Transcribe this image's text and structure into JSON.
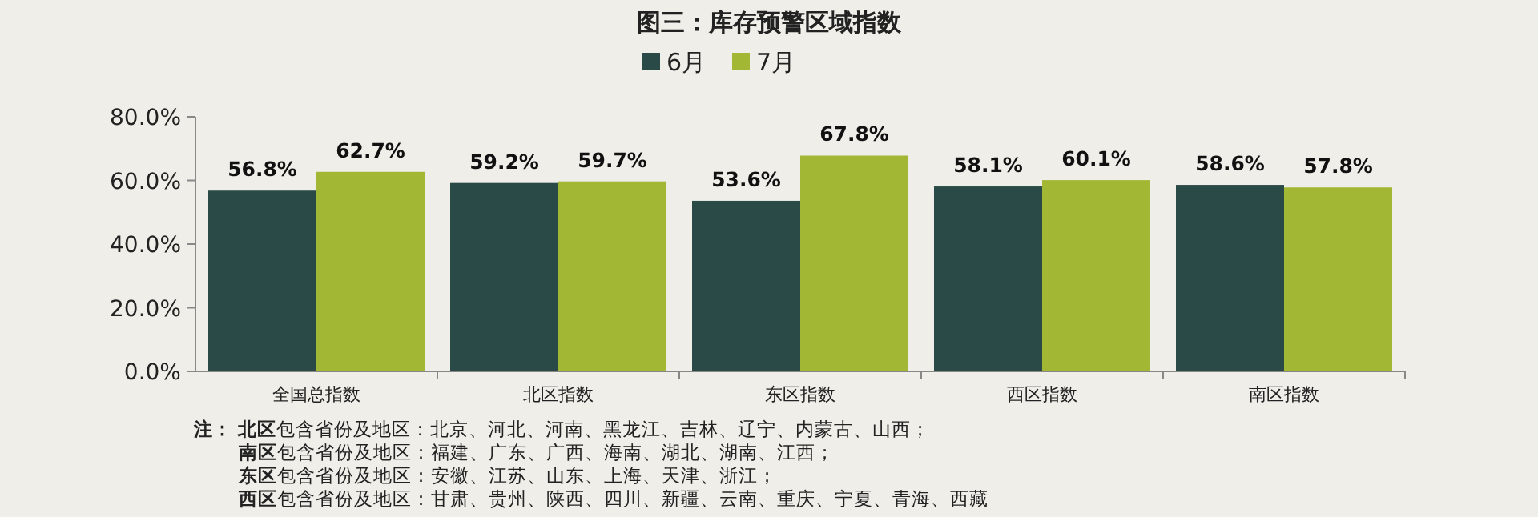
{
  "chart_data": {
    "type": "bar",
    "title": "图三：库存预警区域指数",
    "categories": [
      "全国总指数",
      "北区指数",
      "东区指数",
      "西区指数",
      "南区指数"
    ],
    "series": [
      {
        "name": "6月",
        "color": "#2a4a48",
        "values": [
          56.8,
          59.2,
          53.6,
          58.1,
          58.6
        ],
        "value_labels": [
          "56.8%",
          "59.2%",
          "53.6%",
          "58.1%",
          "58.6%"
        ]
      },
      {
        "name": "7月",
        "color": "#a2b834",
        "values": [
          62.7,
          59.7,
          67.8,
          60.1,
          57.8
        ],
        "value_labels": [
          "62.7%",
          "59.7%",
          "67.8%",
          "60.1%",
          "57.8%"
        ]
      }
    ],
    "ylim": [
      0,
      80
    ],
    "yticks": [
      {
        "value": 0,
        "label": "0.0%"
      },
      {
        "value": 20,
        "label": "20.0%"
      },
      {
        "value": 40,
        "label": "40.0%"
      },
      {
        "value": 60,
        "label": "60.0%"
      },
      {
        "value": 80,
        "label": "80.0%"
      }
    ],
    "grid": false,
    "legend": "top",
    "annotations": [
      "**注：** **北区**包含省份及地区：北京、河北、河南、黑龙江、吉林、辽宁、内蒙古、山西；",
      "**南区**包含省份及地区：福建、广东、广西、海南、湖北、湖南、江西；",
      "**东区**包含省份及地区：安徽、江苏、山东、上海、天津、浙江；",
      "**西区**包含省份及地区：甘肃、贵州、陕西、四川、新疆、云南、重庆、宁夏、青海、西藏"
    ]
  }
}
